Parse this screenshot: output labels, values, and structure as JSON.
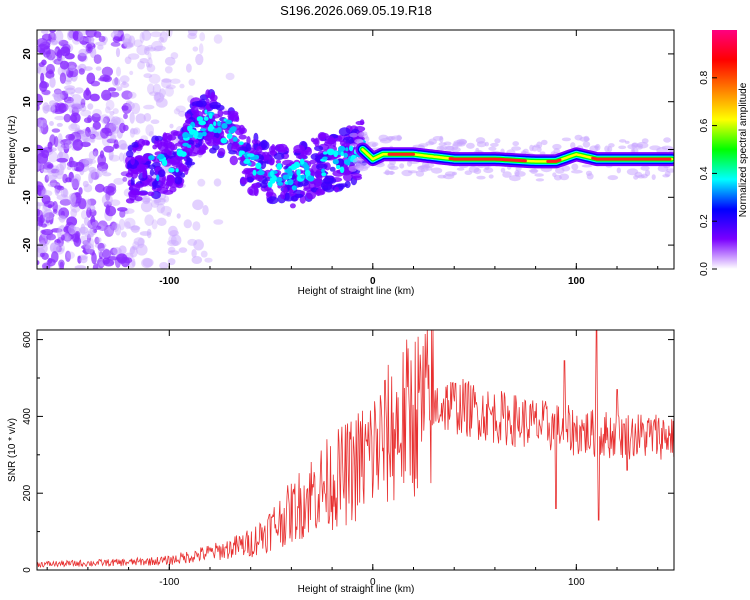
{
  "page_title": "S196.2026.069.05.19.R18",
  "chart_data": [
    {
      "type": "heatmap",
      "xlabel": "Height of straight line (km)",
      "ylabel": "Frequency (Hz)",
      "xlim": [
        -165,
        148
      ],
      "ylim": [
        -25,
        25
      ],
      "xticks": [
        -100,
        0,
        100
      ],
      "yticks": [
        -20,
        -10,
        0,
        10,
        20
      ],
      "colorbar": {
        "label": "Normalized spectral amplitude",
        "range": [
          0,
          1
        ],
        "ticks": [
          0.0,
          0.2,
          0.4,
          0.6,
          0.8
        ],
        "colors": [
          "#ffffff",
          "#7a00ff",
          "#0000ff",
          "#00ffff",
          "#00ff00",
          "#ffff00",
          "#ff7f00",
          "#ff0000",
          "#ff0080"
        ]
      },
      "ridge_frequency_hz": [
        [
          -165,
          -3
        ],
        [
          -135,
          -4
        ],
        [
          -120,
          -5
        ],
        [
          -110,
          -4
        ],
        [
          -100,
          -3
        ],
        [
          -95,
          -2
        ],
        [
          -90,
          3
        ],
        [
          -85,
          5
        ],
        [
          -80,
          6
        ],
        [
          -75,
          5
        ],
        [
          -70,
          3
        ],
        [
          -65,
          0
        ],
        [
          -60,
          -3
        ],
        [
          -55,
          -4
        ],
        [
          -50,
          -5
        ],
        [
          -45,
          -5
        ],
        [
          -40,
          -6
        ],
        [
          -35,
          -5
        ],
        [
          -30,
          -4
        ],
        [
          -25,
          -3
        ],
        [
          -20,
          -3
        ],
        [
          -15,
          -2
        ],
        [
          -10,
          -1
        ],
        [
          -5,
          0
        ],
        [
          0,
          -2
        ],
        [
          5,
          -1
        ],
        [
          10,
          -1
        ],
        [
          20,
          -1
        ],
        [
          40,
          -2
        ],
        [
          60,
          -2
        ],
        [
          80,
          -2.5
        ],
        [
          90,
          -2.5
        ],
        [
          100,
          -1
        ],
        [
          110,
          -2
        ],
        [
          130,
          -2
        ],
        [
          148,
          -2
        ]
      ]
    },
    {
      "type": "line",
      "xlabel": "Height of straight line (km)",
      "ylabel": "SNR (10 * v/v)",
      "xlim": [
        -165,
        148
      ],
      "ylim": [
        0,
        625
      ],
      "xticks": [
        -100,
        0,
        100
      ],
      "yticks": [
        0,
        200,
        400,
        600
      ],
      "series": [
        {
          "name": "SNR",
          "color": "#e83030",
          "envelope": [
            [
              -165,
              15
            ],
            [
              -120,
              20
            ],
            [
              -100,
              25
            ],
            [
              -85,
              40
            ],
            [
              -75,
              50
            ],
            [
              -60,
              70
            ],
            [
              -50,
              110
            ],
            [
              -40,
              150
            ],
            [
              -30,
              200
            ],
            [
              -20,
              230
            ],
            [
              -10,
              260
            ],
            [
              0,
              310
            ],
            [
              10,
              360
            ],
            [
              20,
              410
            ],
            [
              30,
              430
            ],
            [
              40,
              430
            ],
            [
              60,
              400
            ],
            [
              80,
              380
            ],
            [
              100,
              360
            ],
            [
              120,
              350
            ],
            [
              148,
              350
            ]
          ],
          "spikes": [
            [
              90,
              160
            ],
            [
              94,
              545
            ],
            [
              110,
              625
            ],
            [
              111,
              130
            ],
            [
              120,
              470
            ],
            [
              125,
              260
            ]
          ]
        }
      ]
    }
  ]
}
